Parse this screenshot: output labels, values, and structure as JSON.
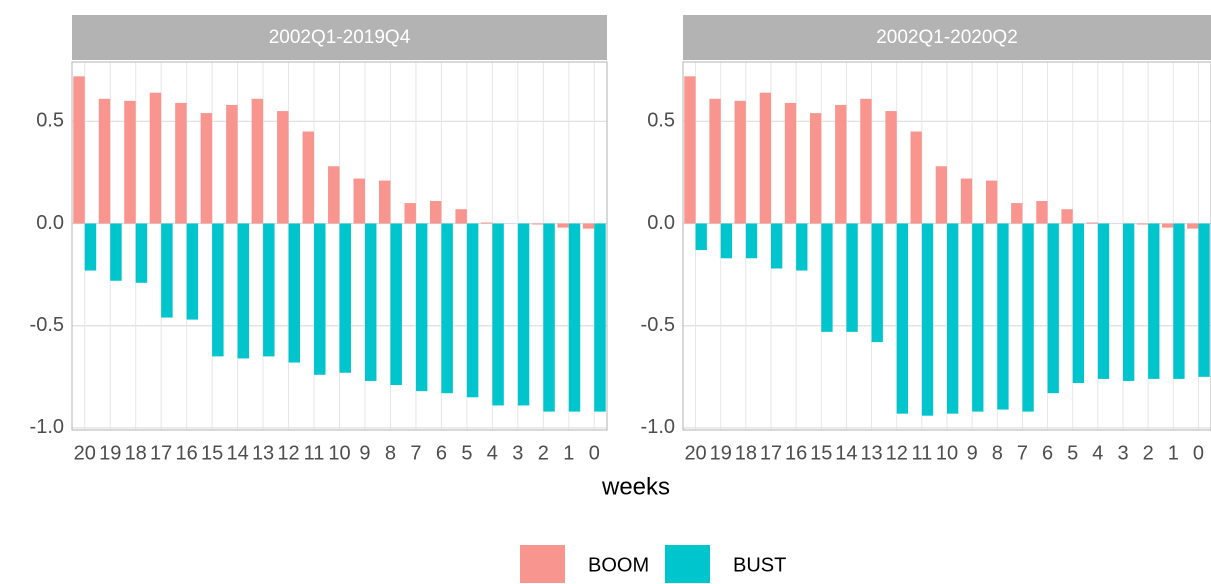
{
  "chart_data": [
    {
      "type": "bar",
      "title": "2002Q1-2019Q4",
      "xlabel": "weeks",
      "categories": [
        "20",
        "19",
        "18",
        "17",
        "16",
        "15",
        "14",
        "13",
        "12",
        "11",
        "10",
        "9",
        "8",
        "7",
        "6",
        "5",
        "4",
        "3",
        "2",
        "1",
        "0"
      ],
      "series": [
        {
          "name": "BOOM",
          "color": "#f9958f",
          "values": [
            0.72,
            0.61,
            0.6,
            0.64,
            0.59,
            0.54,
            0.58,
            0.61,
            0.55,
            0.45,
            0.28,
            0.22,
            0.21,
            0.1,
            0.11,
            0.07,
            0.005,
            0,
            -0.005,
            -0.02,
            -0.025
          ]
        },
        {
          "name": "BUST",
          "color": "#00c5cd",
          "values": [
            -0.23,
            -0.28,
            -0.29,
            -0.46,
            -0.47,
            -0.65,
            -0.66,
            -0.65,
            -0.68,
            -0.74,
            -0.73,
            -0.77,
            -0.79,
            -0.82,
            -0.83,
            -0.85,
            -0.89,
            -0.89,
            -0.92,
            -0.92,
            -0.92
          ]
        }
      ],
      "ylim": [
        -1.01,
        0.79
      ],
      "yticks": [
        {
          "value": -1,
          "label": "-1.0"
        },
        {
          "value": -0.5,
          "label": "-0.5"
        },
        {
          "value": 0,
          "label": "0.0"
        },
        {
          "value": 0.5,
          "label": "0.5"
        }
      ],
      "grid": true,
      "legend": "bottom"
    },
    {
      "type": "bar",
      "title": "2002Q1-2020Q2",
      "categories": [
        "20",
        "19",
        "18",
        "17",
        "16",
        "15",
        "14",
        "13",
        "12",
        "11",
        "10",
        "9",
        "8",
        "7",
        "6",
        "5",
        "4",
        "3",
        "2",
        "1",
        "0"
      ],
      "series": [
        {
          "name": "BOOM",
          "color": "#f9958f",
          "values": [
            0.72,
            0.61,
            0.6,
            0.64,
            0.59,
            0.54,
            0.58,
            0.61,
            0.55,
            0.45,
            0.28,
            0.22,
            0.21,
            0.1,
            0.11,
            0.07,
            0.005,
            0,
            -0.005,
            -0.02,
            -0.025
          ]
        },
        {
          "name": "BUST",
          "color": "#00c5cd",
          "values": [
            -0.13,
            -0.17,
            -0.17,
            -0.22,
            -0.23,
            -0.53,
            -0.53,
            -0.58,
            -0.93,
            -0.94,
            -0.93,
            -0.92,
            -0.91,
            -0.92,
            -0.83,
            -0.78,
            -0.76,
            -0.77,
            -0.76,
            -0.76,
            -0.75
          ]
        }
      ],
      "ylim": [
        -1.01,
        0.79
      ],
      "yticks": [
        {
          "value": -1,
          "label": "-1.0"
        },
        {
          "value": -0.5,
          "label": "-0.5"
        },
        {
          "value": 0,
          "label": "0.0"
        },
        {
          "value": 0.5,
          "label": "0.5"
        }
      ],
      "grid": true
    }
  ]
}
